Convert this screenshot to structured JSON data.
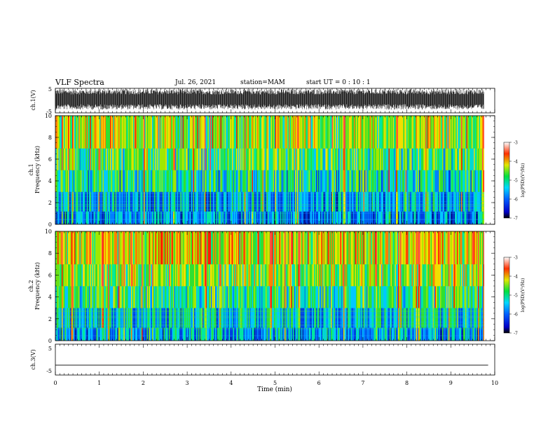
{
  "header": {
    "title": "VLF Spectra",
    "date": "Jul. 26, 2021",
    "station": "station=MAM",
    "start": "start UT = 0 : 10 : 1"
  },
  "chart_data": [
    {
      "type": "line",
      "name": "waveform-ch1",
      "ylabel": "ch.1(V)",
      "ylim": [
        -5,
        5
      ],
      "yticks": [
        "5",
        "-5"
      ],
      "xlim": [
        0,
        10
      ],
      "description_values": "dense noise waveform, amplitude roughly -3 to 4.5 V"
    },
    {
      "type": "heatmap",
      "name": "spectrogram-ch1",
      "ylabel": "ch.1 Frequency (kHz)",
      "ylim": [
        0,
        10
      ],
      "yticks": [
        "0",
        "2",
        "4",
        "6",
        "8",
        "10"
      ],
      "xlim": [
        0,
        9.85
      ],
      "colorbar": {
        "label": "log(PSD)(V²/Hz)",
        "range": [
          -7,
          -3
        ],
        "ticks": [
          "-3",
          "-4",
          "-5",
          "-6",
          "-7"
        ]
      }
    },
    {
      "type": "heatmap",
      "name": "spectrogram-ch2",
      "ylabel": "ch.2 Frequency (kHz)",
      "ylim": [
        0,
        10
      ],
      "yticks": [
        "0",
        "2",
        "4",
        "6",
        "8",
        "10"
      ],
      "xlim": [
        0,
        9.85
      ],
      "colorbar": {
        "label": "log(PSD)(V²/Hz)",
        "range": [
          -7,
          -3
        ],
        "ticks": [
          "-3",
          "-4",
          "-5",
          "-6",
          "-7"
        ]
      }
    },
    {
      "type": "line",
      "name": "waveform-ch3",
      "ylabel": "ch.3(V)",
      "ylim": [
        -5,
        5
      ],
      "yticks": [
        "5",
        "-5"
      ],
      "xlim": [
        0,
        10
      ],
      "x": [
        0,
        9.85
      ],
      "y": [
        -1.8,
        -1.8
      ]
    }
  ],
  "xaxis": {
    "label": "Time (min)",
    "ticks": [
      "0",
      "1",
      "2",
      "3",
      "4",
      "5",
      "6",
      "7",
      "8",
      "9",
      "10"
    ],
    "range": [
      0,
      10
    ]
  }
}
